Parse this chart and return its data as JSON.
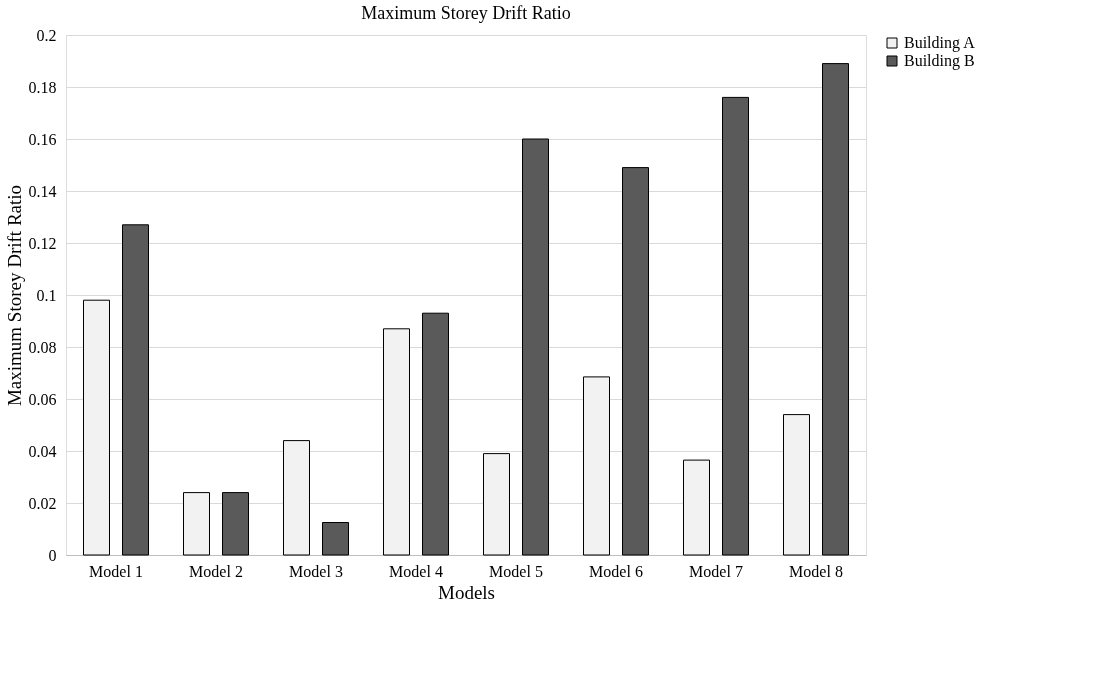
{
  "chart_data": {
    "type": "bar",
    "title": "Maximum Storey Drift Ratio",
    "xlabel": "Models",
    "ylabel": "Maximum Storey Drift Ratio",
    "categories": [
      "Model 1",
      "Model 2",
      "Model 3",
      "Model 4",
      "Model 5",
      "Model 6",
      "Model 7",
      "Model 8"
    ],
    "series": [
      {
        "name": "Building A",
        "color": "#f2f2f2",
        "values": [
          0.098,
          0.024,
          0.044,
          0.087,
          0.039,
          0.0685,
          0.0365,
          0.054
        ]
      },
      {
        "name": "Building B",
        "color": "#5a5a5a",
        "values": [
          0.127,
          0.024,
          0.0125,
          0.093,
          0.16,
          0.149,
          0.176,
          0.189
        ]
      }
    ],
    "ylim": [
      0,
      0.2
    ],
    "yticks": [
      0,
      0.02,
      0.04,
      0.06,
      0.08,
      0.1,
      0.12,
      0.14,
      0.16,
      0.18,
      0.2
    ],
    "grid": "y",
    "legend": "right"
  }
}
